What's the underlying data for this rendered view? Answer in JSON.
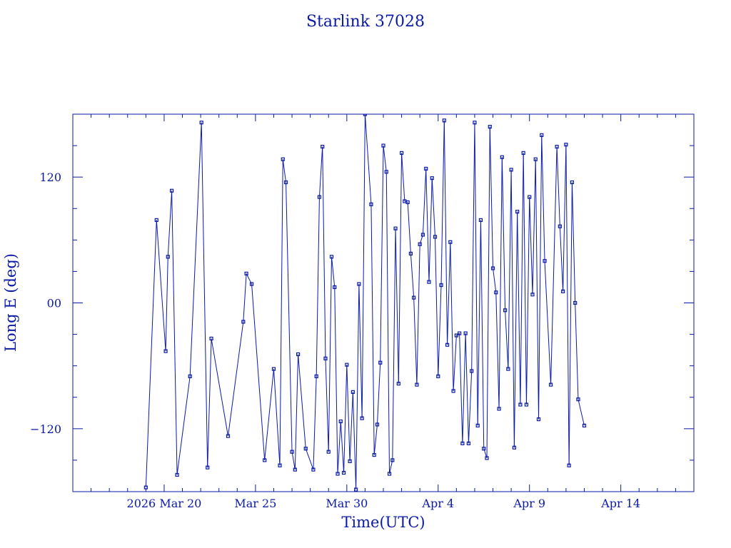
{
  "chart_data": {
    "type": "scatter",
    "title": "Starlink 37028",
    "xlabel": "Time(UTC)",
    "ylabel": "Long E (deg)",
    "x_unit": "days",
    "x_ticks": [
      {
        "label": "2026 Mar 20",
        "x": "2026-03-20"
      },
      {
        "label": "Mar 25",
        "x": "2026-03-25"
      },
      {
        "label": "Mar 30",
        "x": "2026-03-30"
      },
      {
        "label": "Apr  4",
        "x": "2026-04-04"
      },
      {
        "label": "Apr  9",
        "x": "2026-04-09"
      },
      {
        "label": "Apr 14",
        "x": "2026-04-14"
      }
    ],
    "y_ticks": [
      {
        "label": "120",
        "y": 120
      },
      {
        "label": "00",
        "y": 0
      },
      {
        "label": "−120",
        "y": -120
      }
    ],
    "xlim": [
      "2026-03-15",
      "2026-04-18"
    ],
    "ylim": [
      -180,
      180
    ],
    "grid": false,
    "color": "#0a1aa8",
    "series": [
      {
        "points": [
          {
            "x": "2026-03-19 00:00",
            "y": -176
          },
          {
            "x": "2026-03-19 14:00",
            "y": 79
          },
          {
            "x": "2026-03-20 02:00",
            "y": -46
          },
          {
            "x": "2026-03-20 05:00",
            "y": 44
          },
          {
            "x": "2026-03-20 10:00",
            "y": 107
          },
          {
            "x": "2026-03-20 17:00",
            "y": -164
          },
          {
            "x": "2026-03-21 10:00",
            "y": -70
          },
          {
            "x": "2026-03-22 01:00",
            "y": 172
          },
          {
            "x": "2026-03-22 09:00",
            "y": -157
          },
          {
            "x": "2026-03-22 14:00",
            "y": -34
          },
          {
            "x": "2026-03-23 12:00",
            "y": -127
          },
          {
            "x": "2026-03-24 08:00",
            "y": -18
          },
          {
            "x": "2026-03-24 12:00",
            "y": 28
          },
          {
            "x": "2026-03-24 19:00",
            "y": 18
          },
          {
            "x": "2026-03-25 12:00",
            "y": -150
          },
          {
            "x": "2026-03-26 00:00",
            "y": -63
          },
          {
            "x": "2026-03-26 08:00",
            "y": -155
          },
          {
            "x": "2026-03-26 12:00",
            "y": 137
          },
          {
            "x": "2026-03-26 16:00",
            "y": 115
          },
          {
            "x": "2026-03-27 00:00",
            "y": -142
          },
          {
            "x": "2026-03-27 04:00",
            "y": -159
          },
          {
            "x": "2026-03-27 08:00",
            "y": -49
          },
          {
            "x": "2026-03-27 18:00",
            "y": -139
          },
          {
            "x": "2026-03-28 04:00",
            "y": -159
          },
          {
            "x": "2026-03-28 08:00",
            "y": -70
          },
          {
            "x": "2026-03-28 12:00",
            "y": 101
          },
          {
            "x": "2026-03-28 16:00",
            "y": 149
          },
          {
            "x": "2026-03-28 20:00",
            "y": -53
          },
          {
            "x": "2026-03-29 00:00",
            "y": -142
          },
          {
            "x": "2026-03-29 04:00",
            "y": 44
          },
          {
            "x": "2026-03-29 08:00",
            "y": 15
          },
          {
            "x": "2026-03-29 12:00",
            "y": -163
          },
          {
            "x": "2026-03-29 16:00",
            "y": -113
          },
          {
            "x": "2026-03-29 20:00",
            "y": -162
          },
          {
            "x": "2026-03-30 00:00",
            "y": -59
          },
          {
            "x": "2026-03-30 04:00",
            "y": -151
          },
          {
            "x": "2026-03-30 08:00",
            "y": -85
          },
          {
            "x": "2026-03-30 12:00",
            "y": -178
          },
          {
            "x": "2026-03-30 16:00",
            "y": 18
          },
          {
            "x": "2026-03-30 20:00",
            "y": -110
          },
          {
            "x": "2026-03-31 00:00",
            "y": 180
          },
          {
            "x": "2026-03-31 08:00",
            "y": 94
          },
          {
            "x": "2026-03-31 12:00",
            "y": -145
          },
          {
            "x": "2026-03-31 16:00",
            "y": -116
          },
          {
            "x": "2026-03-31 20:00",
            "y": -57
          },
          {
            "x": "2026-04-01 00:00",
            "y": 150
          },
          {
            "x": "2026-04-01 04:00",
            "y": 125
          },
          {
            "x": "2026-04-01 08:00",
            "y": -163
          },
          {
            "x": "2026-04-01 12:00",
            "y": -150
          },
          {
            "x": "2026-04-01 16:00",
            "y": 71
          },
          {
            "x": "2026-04-01 20:00",
            "y": -77
          },
          {
            "x": "2026-04-02 00:00",
            "y": 143
          },
          {
            "x": "2026-04-02 04:00",
            "y": 97
          },
          {
            "x": "2026-04-02 08:00",
            "y": 96
          },
          {
            "x": "2026-04-02 12:00",
            "y": 47
          },
          {
            "x": "2026-04-02 16:00",
            "y": 5
          },
          {
            "x": "2026-04-02 20:00",
            "y": -78
          },
          {
            "x": "2026-04-03 00:00",
            "y": 56
          },
          {
            "x": "2026-04-03 04:00",
            "y": 65
          },
          {
            "x": "2026-04-03 08:00",
            "y": 128
          },
          {
            "x": "2026-04-03 12:00",
            "y": 20
          },
          {
            "x": "2026-04-03 16:00",
            "y": 119
          },
          {
            "x": "2026-04-03 20:00",
            "y": 63
          },
          {
            "x": "2026-04-04 00:00",
            "y": -70
          },
          {
            "x": "2026-04-04 04:00",
            "y": 17
          },
          {
            "x": "2026-04-04 08:00",
            "y": 174
          },
          {
            "x": "2026-04-04 12:00",
            "y": -40
          },
          {
            "x": "2026-04-04 16:00",
            "y": 58
          },
          {
            "x": "2026-04-04 20:00",
            "y": -84
          },
          {
            "x": "2026-04-05 00:00",
            "y": -31
          },
          {
            "x": "2026-04-05 04:00",
            "y": -29
          },
          {
            "x": "2026-04-05 08:00",
            "y": -134
          },
          {
            "x": "2026-04-05 12:00",
            "y": -29
          },
          {
            "x": "2026-04-05 16:00",
            "y": -134
          },
          {
            "x": "2026-04-05 20:00",
            "y": -65
          },
          {
            "x": "2026-04-06 00:00",
            "y": 172
          },
          {
            "x": "2026-04-06 04:00",
            "y": -117
          },
          {
            "x": "2026-04-06 08:00",
            "y": 79
          },
          {
            "x": "2026-04-06 12:00",
            "y": -139
          },
          {
            "x": "2026-04-06 16:00",
            "y": -148
          },
          {
            "x": "2026-04-06 20:00",
            "y": 168
          },
          {
            "x": "2026-04-07 00:00",
            "y": 33
          },
          {
            "x": "2026-04-07 04:00",
            "y": 10
          },
          {
            "x": "2026-04-07 08:00",
            "y": -101
          },
          {
            "x": "2026-04-07 12:00",
            "y": 139
          },
          {
            "x": "2026-04-07 16:00",
            "y": -7
          },
          {
            "x": "2026-04-07 20:00",
            "y": -63
          },
          {
            "x": "2026-04-08 00:00",
            "y": 127
          },
          {
            "x": "2026-04-08 04:00",
            "y": -138
          },
          {
            "x": "2026-04-08 08:00",
            "y": 87
          },
          {
            "x": "2026-04-08 12:00",
            "y": -97
          },
          {
            "x": "2026-04-08 16:00",
            "y": 143
          },
          {
            "x": "2026-04-08 20:00",
            "y": -97
          },
          {
            "x": "2026-04-09 00:00",
            "y": 101
          },
          {
            "x": "2026-04-09 04:00",
            "y": 8
          },
          {
            "x": "2026-04-09 08:00",
            "y": 137
          },
          {
            "x": "2026-04-09 12:00",
            "y": -111
          },
          {
            "x": "2026-04-09 16:00",
            "y": 160
          },
          {
            "x": "2026-04-09 20:00",
            "y": 40
          },
          {
            "x": "2026-04-10 04:00",
            "y": -78
          },
          {
            "x": "2026-04-10 12:00",
            "y": 149
          },
          {
            "x": "2026-04-10 16:00",
            "y": 73
          },
          {
            "x": "2026-04-10 20:00",
            "y": 11
          },
          {
            "x": "2026-04-11 00:00",
            "y": 151
          },
          {
            "x": "2026-04-11 04:00",
            "y": -155
          },
          {
            "x": "2026-04-11 08:00",
            "y": 115
          },
          {
            "x": "2026-04-11 12:00",
            "y": 0
          },
          {
            "x": "2026-04-11 16:00",
            "y": -92
          },
          {
            "x": "2026-04-12 00:00",
            "y": -117
          }
        ]
      }
    ]
  }
}
